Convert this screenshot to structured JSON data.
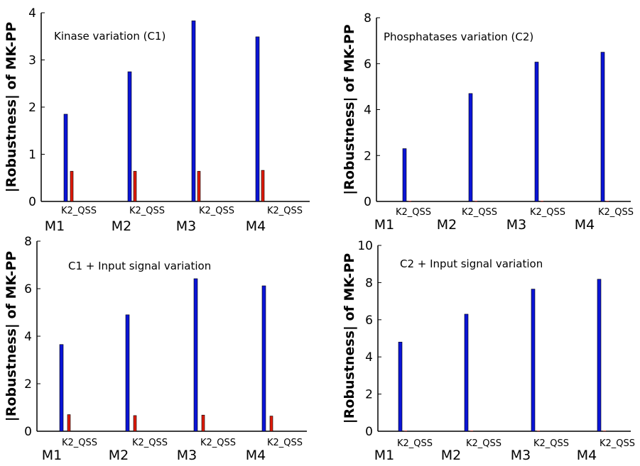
{
  "chart_data": [
    {
      "type": "bar",
      "title": "Kinase variation (C1)",
      "ylabel": "|Robustness| of MK-PP",
      "ylim": [
        0,
        4
      ],
      "yticks": [
        0,
        1,
        2,
        3,
        4
      ],
      "categories": [
        "K2_QSS",
        "K2_QSS",
        "K2_QSS",
        "K2_QSS"
      ],
      "groups": [
        "M1",
        "M2",
        "M3",
        "M4"
      ],
      "series": [
        {
          "color": "#0a14d6",
          "values": [
            1.85,
            2.75,
            3.83,
            3.49
          ]
        },
        {
          "color": "#e01a0a",
          "values": [
            0.64,
            0.64,
            0.64,
            0.66
          ]
        }
      ]
    },
    {
      "type": "bar",
      "title": "Phosphatases  variation (C2)",
      "ylabel": "|Robustness| of MK-PP",
      "ylim": [
        0,
        8
      ],
      "yticks": [
        0,
        2,
        4,
        6,
        8
      ],
      "categories": [
        "K2_QSS",
        "K2_QSS",
        "K2_QSS",
        "K2_QSS"
      ],
      "groups": [
        "M1",
        "M2",
        "M3",
        "M4"
      ],
      "series": [
        {
          "color": "#0a14d6",
          "values": [
            2.3,
            4.7,
            6.07,
            6.5
          ]
        },
        {
          "color": "#e01a0a",
          "values": [
            0.02,
            0.02,
            0.02,
            0.02
          ]
        }
      ]
    },
    {
      "type": "bar",
      "title": "C1 + Input signal variation",
      "ylabel": "|Robustness| of MK-PP",
      "ylim": [
        0,
        8
      ],
      "yticks": [
        0,
        2,
        4,
        6,
        8
      ],
      "categories": [
        "K2_QSS",
        "K2_QSS",
        "K2_QSS",
        "K2_QSS"
      ],
      "groups": [
        "M1",
        "M2",
        "M3",
        "M4"
      ],
      "series": [
        {
          "color": "#0a14d6",
          "values": [
            3.65,
            4.9,
            6.42,
            6.12
          ]
        },
        {
          "color": "#e01a0a",
          "values": [
            0.7,
            0.66,
            0.68,
            0.64
          ]
        }
      ]
    },
    {
      "type": "bar",
      "title": "C2 + Input signal variation",
      "ylabel": "|Robustness| of MK-PP",
      "ylim": [
        0,
        10
      ],
      "yticks": [
        0,
        2,
        4,
        6,
        8,
        10
      ],
      "categories": [
        "K2_QSS",
        "K2_QSS",
        "K2_QSS",
        "K2_QSS"
      ],
      "groups": [
        "M1",
        "M2",
        "M3",
        "M4"
      ],
      "series": [
        {
          "color": "#0a14d6",
          "values": [
            4.8,
            6.3,
            7.65,
            8.18
          ]
        },
        {
          "color": "#e01a0a",
          "values": [
            0.02,
            0.02,
            0.02,
            0.02
          ]
        }
      ]
    }
  ]
}
